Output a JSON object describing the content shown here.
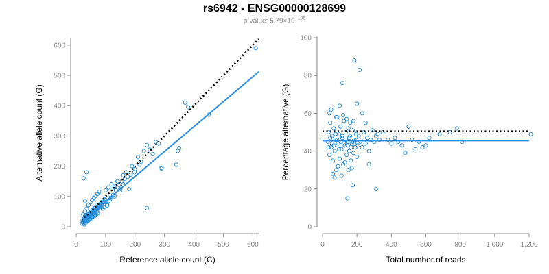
{
  "header": {
    "title": "rs6942 - ENSG00000128699",
    "pvalue_label": "p-value: 5.79×10",
    "pvalue_exponent": "−106"
  },
  "colors": {
    "points": "#1f8ad6",
    "fit_line": "#2b8fe0",
    "reference_line": "#000000",
    "axis": "#888888"
  },
  "chart_data": [
    {
      "type": "scatter",
      "xlabel": "Reference allele count (C)",
      "ylabel": "Alternative allele count (G)",
      "xlim": [
        0,
        620
      ],
      "ylim": [
        0,
        620
      ],
      "x_ticks": [
        0,
        100,
        200,
        300,
        400,
        500,
        600
      ],
      "y_ticks": [
        0,
        100,
        200,
        300,
        400,
        500,
        600
      ],
      "x_tick_labels": [
        "0",
        "100",
        "200",
        "300",
        "400",
        "500",
        "600"
      ],
      "y_tick_labels": [
        "0",
        "100",
        "200",
        "300",
        "400",
        "500",
        "600"
      ],
      "lines": [
        {
          "style": "dotted",
          "color": "#000000",
          "x": [
            20,
            620
          ],
          "y": [
            20,
            620
          ]
        },
        {
          "style": "solid",
          "color": "#2b8fe0",
          "x": [
            20,
            620
          ],
          "y": [
            18,
            512
          ]
        }
      ],
      "points": [
        [
          20,
          10
        ],
        [
          22,
          15
        ],
        [
          25,
          12
        ],
        [
          28,
          20
        ],
        [
          30,
          18
        ],
        [
          32,
          25
        ],
        [
          35,
          22
        ],
        [
          38,
          30
        ],
        [
          40,
          28
        ],
        [
          42,
          35
        ],
        [
          45,
          32
        ],
        [
          48,
          40
        ],
        [
          50,
          38
        ],
        [
          52,
          45
        ],
        [
          55,
          42
        ],
        [
          58,
          50
        ],
        [
          60,
          48
        ],
        [
          62,
          55
        ],
        [
          65,
          52
        ],
        [
          68,
          60
        ],
        [
          70,
          58
        ],
        [
          72,
          65
        ],
        [
          75,
          62
        ],
        [
          78,
          70
        ],
        [
          80,
          68
        ],
        [
          82,
          75
        ],
        [
          85,
          72
        ],
        [
          88,
          80
        ],
        [
          90,
          78
        ],
        [
          92,
          85
        ],
        [
          95,
          82
        ],
        [
          98,
          90
        ],
        [
          100,
          88
        ],
        [
          105,
          70
        ],
        [
          110,
          85
        ],
        [
          115,
          95
        ],
        [
          120,
          100
        ],
        [
          25,
          30
        ],
        [
          30,
          35
        ],
        [
          35,
          40
        ],
        [
          40,
          20
        ],
        [
          45,
          25
        ],
        [
          50,
          30
        ],
        [
          55,
          35
        ],
        [
          60,
          40
        ],
        [
          65,
          45
        ],
        [
          70,
          50
        ],
        [
          75,
          55
        ],
        [
          80,
          60
        ],
        [
          85,
          65
        ],
        [
          28,
          8
        ],
        [
          33,
          14
        ],
        [
          37,
          18
        ],
        [
          43,
          22
        ],
        [
          47,
          26
        ],
        [
          53,
          28
        ],
        [
          57,
          33
        ],
        [
          63,
          36
        ],
        [
          67,
          38
        ],
        [
          73,
          44
        ],
        [
          24,
          40
        ],
        [
          30,
          50
        ],
        [
          36,
          60
        ],
        [
          42,
          72
        ],
        [
          48,
          80
        ],
        [
          54,
          88
        ],
        [
          60,
          95
        ],
        [
          66,
          102
        ],
        [
          72,
          108
        ],
        [
          78,
          115
        ],
        [
          22,
          22
        ],
        [
          26,
          26
        ],
        [
          31,
          31
        ],
        [
          36,
          36
        ],
        [
          41,
          41
        ],
        [
          46,
          46
        ],
        [
          51,
          51
        ],
        [
          56,
          56
        ],
        [
          61,
          61
        ],
        [
          66,
          66
        ],
        [
          100,
          120
        ],
        [
          110,
          130
        ],
        [
          120,
          140
        ],
        [
          130,
          135
        ],
        [
          140,
          150
        ],
        [
          150,
          120
        ],
        [
          160,
          170
        ],
        [
          170,
          180
        ],
        [
          180,
          125
        ],
        [
          190,
          200
        ],
        [
          200,
          190
        ],
        [
          210,
          230
        ],
        [
          220,
          215
        ],
        [
          230,
          250
        ],
        [
          240,
          270
        ],
        [
          250,
          255
        ],
        [
          260,
          240
        ],
        [
          270,
          280
        ],
        [
          280,
          275
        ],
        [
          290,
          195
        ],
        [
          130,
          100
        ],
        [
          140,
          110
        ],
        [
          150,
          125
        ],
        [
          160,
          140
        ],
        [
          90,
          60
        ],
        [
          95,
          65
        ],
        [
          105,
          75
        ],
        [
          115,
          90
        ],
        [
          125,
          105
        ],
        [
          135,
          120
        ],
        [
          25,
          160
        ],
        [
          35,
          180
        ],
        [
          30,
          85
        ],
        [
          240,
          62
        ],
        [
          290,
          192
        ],
        [
          340,
          205
        ],
        [
          345,
          250
        ],
        [
          350,
          260
        ],
        [
          370,
          410
        ],
        [
          380,
          395
        ],
        [
          450,
          370
        ],
        [
          610,
          590
        ],
        [
          130,
          130
        ],
        [
          145,
          138
        ],
        [
          155,
          150
        ],
        [
          165,
          158
        ],
        [
          175,
          165
        ],
        [
          185,
          172
        ],
        [
          198,
          180
        ],
        [
          215,
          205
        ]
      ]
    },
    {
      "type": "scatter",
      "xlabel": "Total number of reads",
      "ylabel": "Percentage alternative (G)",
      "xlim": [
        0,
        1200
      ],
      "ylim": [
        0,
        100
      ],
      "x_ticks": [
        0,
        200,
        400,
        600,
        800,
        1000,
        1200
      ],
      "y_ticks": [
        0,
        20,
        40,
        60,
        80,
        100
      ],
      "x_tick_labels": [
        "0",
        "200",
        "400",
        "600",
        "800",
        "1,000",
        "1,200"
      ],
      "y_tick_labels": [
        "0",
        "20",
        "40",
        "60",
        "80",
        "100"
      ],
      "lines": [
        {
          "style": "dotted",
          "color": "#000000",
          "x": [
            0,
            1200
          ],
          "y": [
            50.5,
            50.5
          ]
        },
        {
          "style": "solid",
          "color": "#2b8fe0",
          "x": [
            0,
            1200
          ],
          "y": [
            45.5,
            45.5
          ]
        }
      ],
      "points": [
        [
          30,
          45
        ],
        [
          35,
          50
        ],
        [
          40,
          38
        ],
        [
          45,
          55
        ],
        [
          50,
          42
        ],
        [
          55,
          48
        ],
        [
          60,
          35
        ],
        [
          65,
          52
        ],
        [
          70,
          40
        ],
        [
          75,
          46
        ],
        [
          80,
          30
        ],
        [
          85,
          58
        ],
        [
          90,
          44
        ],
        [
          95,
          49
        ],
        [
          100,
          36
        ],
        [
          105,
          53
        ],
        [
          110,
          41
        ],
        [
          115,
          47
        ],
        [
          120,
          33
        ],
        [
          125,
          56
        ],
        [
          130,
          43
        ],
        [
          135,
          50
        ],
        [
          140,
          38
        ],
        [
          145,
          45
        ],
        [
          150,
          52
        ],
        [
          155,
          40
        ],
        [
          160,
          48
        ],
        [
          165,
          35
        ],
        [
          170,
          44
        ],
        [
          175,
          51
        ],
        [
          180,
          39
        ],
        [
          185,
          46
        ],
        [
          190,
          42
        ],
        [
          195,
          49
        ],
        [
          200,
          37
        ],
        [
          40,
          60
        ],
        [
          50,
          62
        ],
        [
          60,
          28
        ],
        [
          70,
          26
        ],
        [
          80,
          58
        ],
        [
          90,
          32
        ],
        [
          100,
          64
        ],
        [
          110,
          27
        ],
        [
          120,
          59
        ],
        [
          130,
          34
        ],
        [
          140,
          57
        ],
        [
          150,
          30
        ],
        [
          160,
          55
        ],
        [
          170,
          31
        ],
        [
          180,
          56
        ],
        [
          35,
          42
        ],
        [
          45,
          47
        ],
        [
          55,
          44
        ],
        [
          65,
          43
        ],
        [
          75,
          49
        ],
        [
          85,
          46
        ],
        [
          95,
          41
        ],
        [
          105,
          45
        ],
        [
          115,
          48
        ],
        [
          125,
          44
        ],
        [
          135,
          46
        ],
        [
          145,
          43
        ],
        [
          155,
          47
        ],
        [
          165,
          42
        ],
        [
          175,
          45
        ],
        [
          185,
          44
        ],
        [
          195,
          46
        ],
        [
          205,
          43
        ],
        [
          210,
          48
        ],
        [
          220,
          45
        ],
        [
          230,
          42
        ],
        [
          240,
          50
        ],
        [
          250,
          44
        ],
        [
          260,
          47
        ],
        [
          270,
          40
        ],
        [
          280,
          46
        ],
        [
          290,
          51
        ],
        [
          300,
          45
        ],
        [
          310,
          48
        ],
        [
          320,
          49
        ],
        [
          330,
          46
        ],
        [
          350,
          50
        ],
        [
          380,
          46
        ],
        [
          400,
          44
        ],
        [
          420,
          47
        ],
        [
          440,
          45
        ],
        [
          460,
          43
        ],
        [
          480,
          39
        ],
        [
          500,
          53
        ],
        [
          520,
          46
        ],
        [
          540,
          41
        ],
        [
          560,
          45
        ],
        [
          580,
          42
        ],
        [
          600,
          43
        ],
        [
          620,
          47
        ],
        [
          680,
          49
        ],
        [
          740,
          50
        ],
        [
          780,
          52
        ],
        [
          810,
          45
        ],
        [
          1210,
          49
        ],
        [
          115,
          76
        ],
        [
          185,
          88
        ],
        [
          215,
          83
        ],
        [
          145,
          15
        ],
        [
          175,
          22
        ],
        [
          310,
          20
        ],
        [
          250,
          55
        ],
        [
          270,
          33
        ],
        [
          230,
          60
        ],
        [
          200,
          65
        ]
      ]
    }
  ]
}
